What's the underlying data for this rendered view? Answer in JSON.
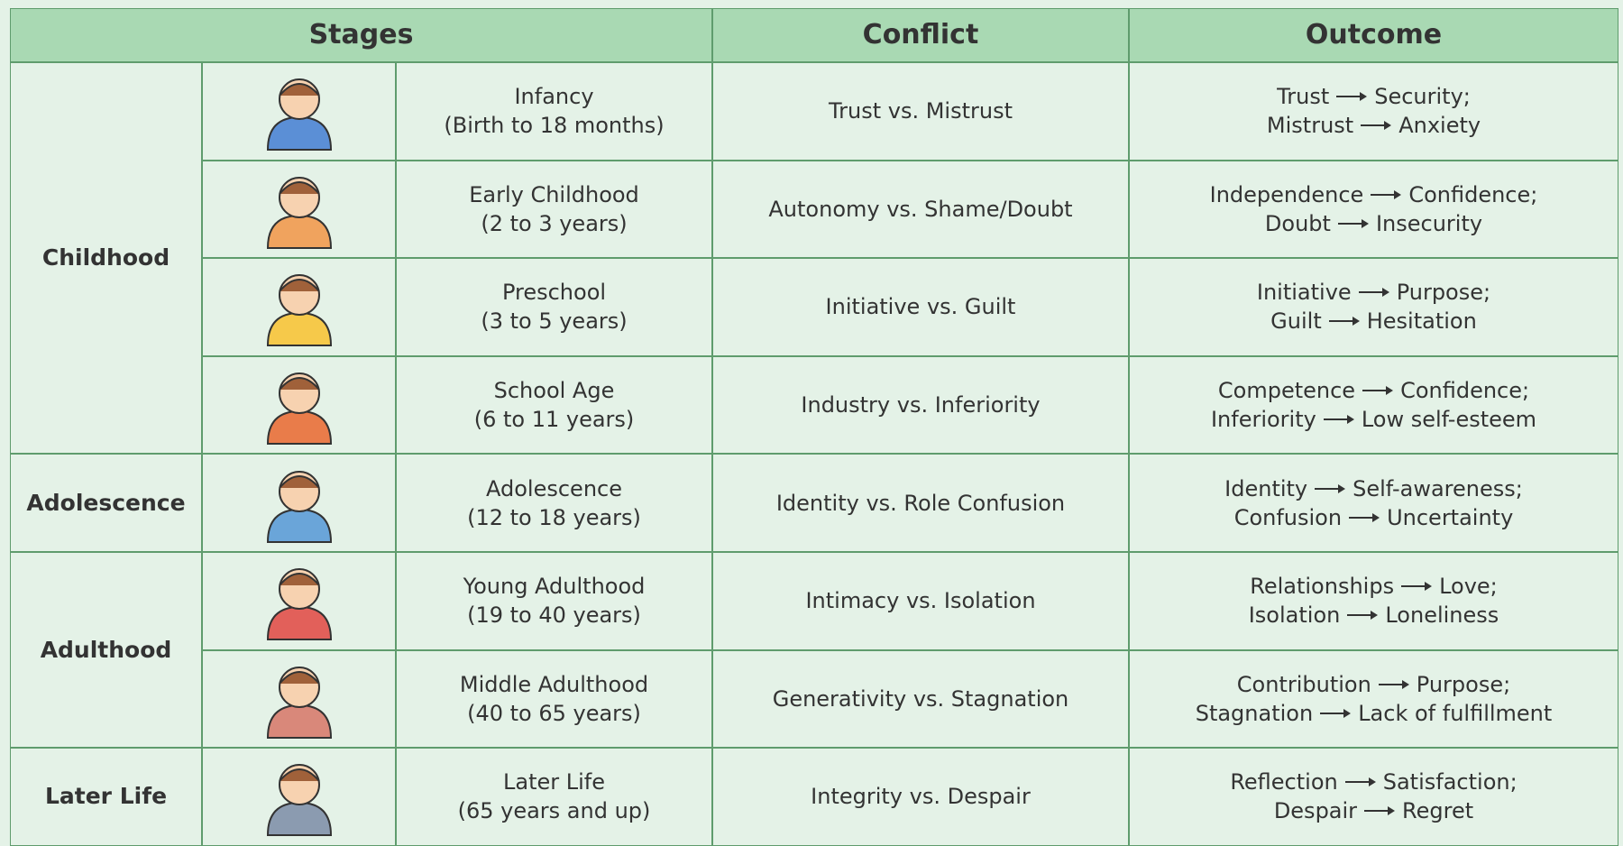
{
  "header": {
    "stages": "Stages",
    "conflict": "Conflict",
    "outcome": "Outcome"
  },
  "groups": [
    {
      "label": "Childhood",
      "rows": [
        {
          "stage": "Infancy",
          "age": "(Birth to 18 months)",
          "conflict": "Trust vs. Mistrust",
          "outcome": [
            {
              "from": "Trust",
              "to": "Security;"
            },
            {
              "from": "Mistrust",
              "to": "Anxiety"
            }
          ]
        },
        {
          "stage": "Early Childhood",
          "age": "(2 to 3 years)",
          "conflict": "Autonomy vs. Shame/Doubt",
          "outcome": [
            {
              "from": "Independence",
              "to": "Confidence;"
            },
            {
              "from": "Doubt",
              "to": "Insecurity"
            }
          ]
        },
        {
          "stage": "Preschool",
          "age": "(3 to 5 years)",
          "conflict": "Initiative vs. Guilt",
          "outcome": [
            {
              "from": "Initiative",
              "to": "Purpose;"
            },
            {
              "from": "Guilt",
              "to": "Hesitation"
            }
          ]
        },
        {
          "stage": "School Age",
          "age": "(6 to 11 years)",
          "conflict": "Industry vs. Inferiority",
          "outcome": [
            {
              "from": "Competence",
              "to": "Confidence;"
            },
            {
              "from": "Inferiority",
              "to": "Low self-esteem"
            }
          ]
        }
      ]
    },
    {
      "label": "Adolescence",
      "rows": [
        {
          "stage": "Adolescence",
          "age": "(12 to 18 years)",
          "conflict": "Identity vs. Role Confusion",
          "outcome": [
            {
              "from": "Identity",
              "to": "Self-awareness;"
            },
            {
              "from": "Confusion",
              "to": "Uncertainty"
            }
          ]
        }
      ]
    },
    {
      "label": "Adulthood",
      "rows": [
        {
          "stage": "Young Adulthood",
          "age": "(19 to 40 years)",
          "conflict": "Intimacy vs. Isolation",
          "outcome": [
            {
              "from": "Relationships",
              "to": "Love;"
            },
            {
              "from": "Isolation",
              "to": "Loneliness"
            }
          ]
        },
        {
          "stage": "Middle Adulthood",
          "age": "(40 to 65 years)",
          "conflict": "Generativity vs. Stagnation",
          "outcome": [
            {
              "from": "Contribution",
              "to": "Purpose;"
            },
            {
              "from": "Stagnation",
              "to": "Lack of fulfillment"
            }
          ]
        }
      ]
    },
    {
      "label": "Later Life",
      "rows": [
        {
          "stage": "Later Life",
          "age": "(65 years and up)",
          "conflict": "Integrity vs. Despair",
          "outcome": [
            {
              "from": "Reflection",
              "to": "Satisfaction;"
            },
            {
              "from": "Despair",
              "to": "Regret"
            }
          ]
        }
      ]
    }
  ]
}
